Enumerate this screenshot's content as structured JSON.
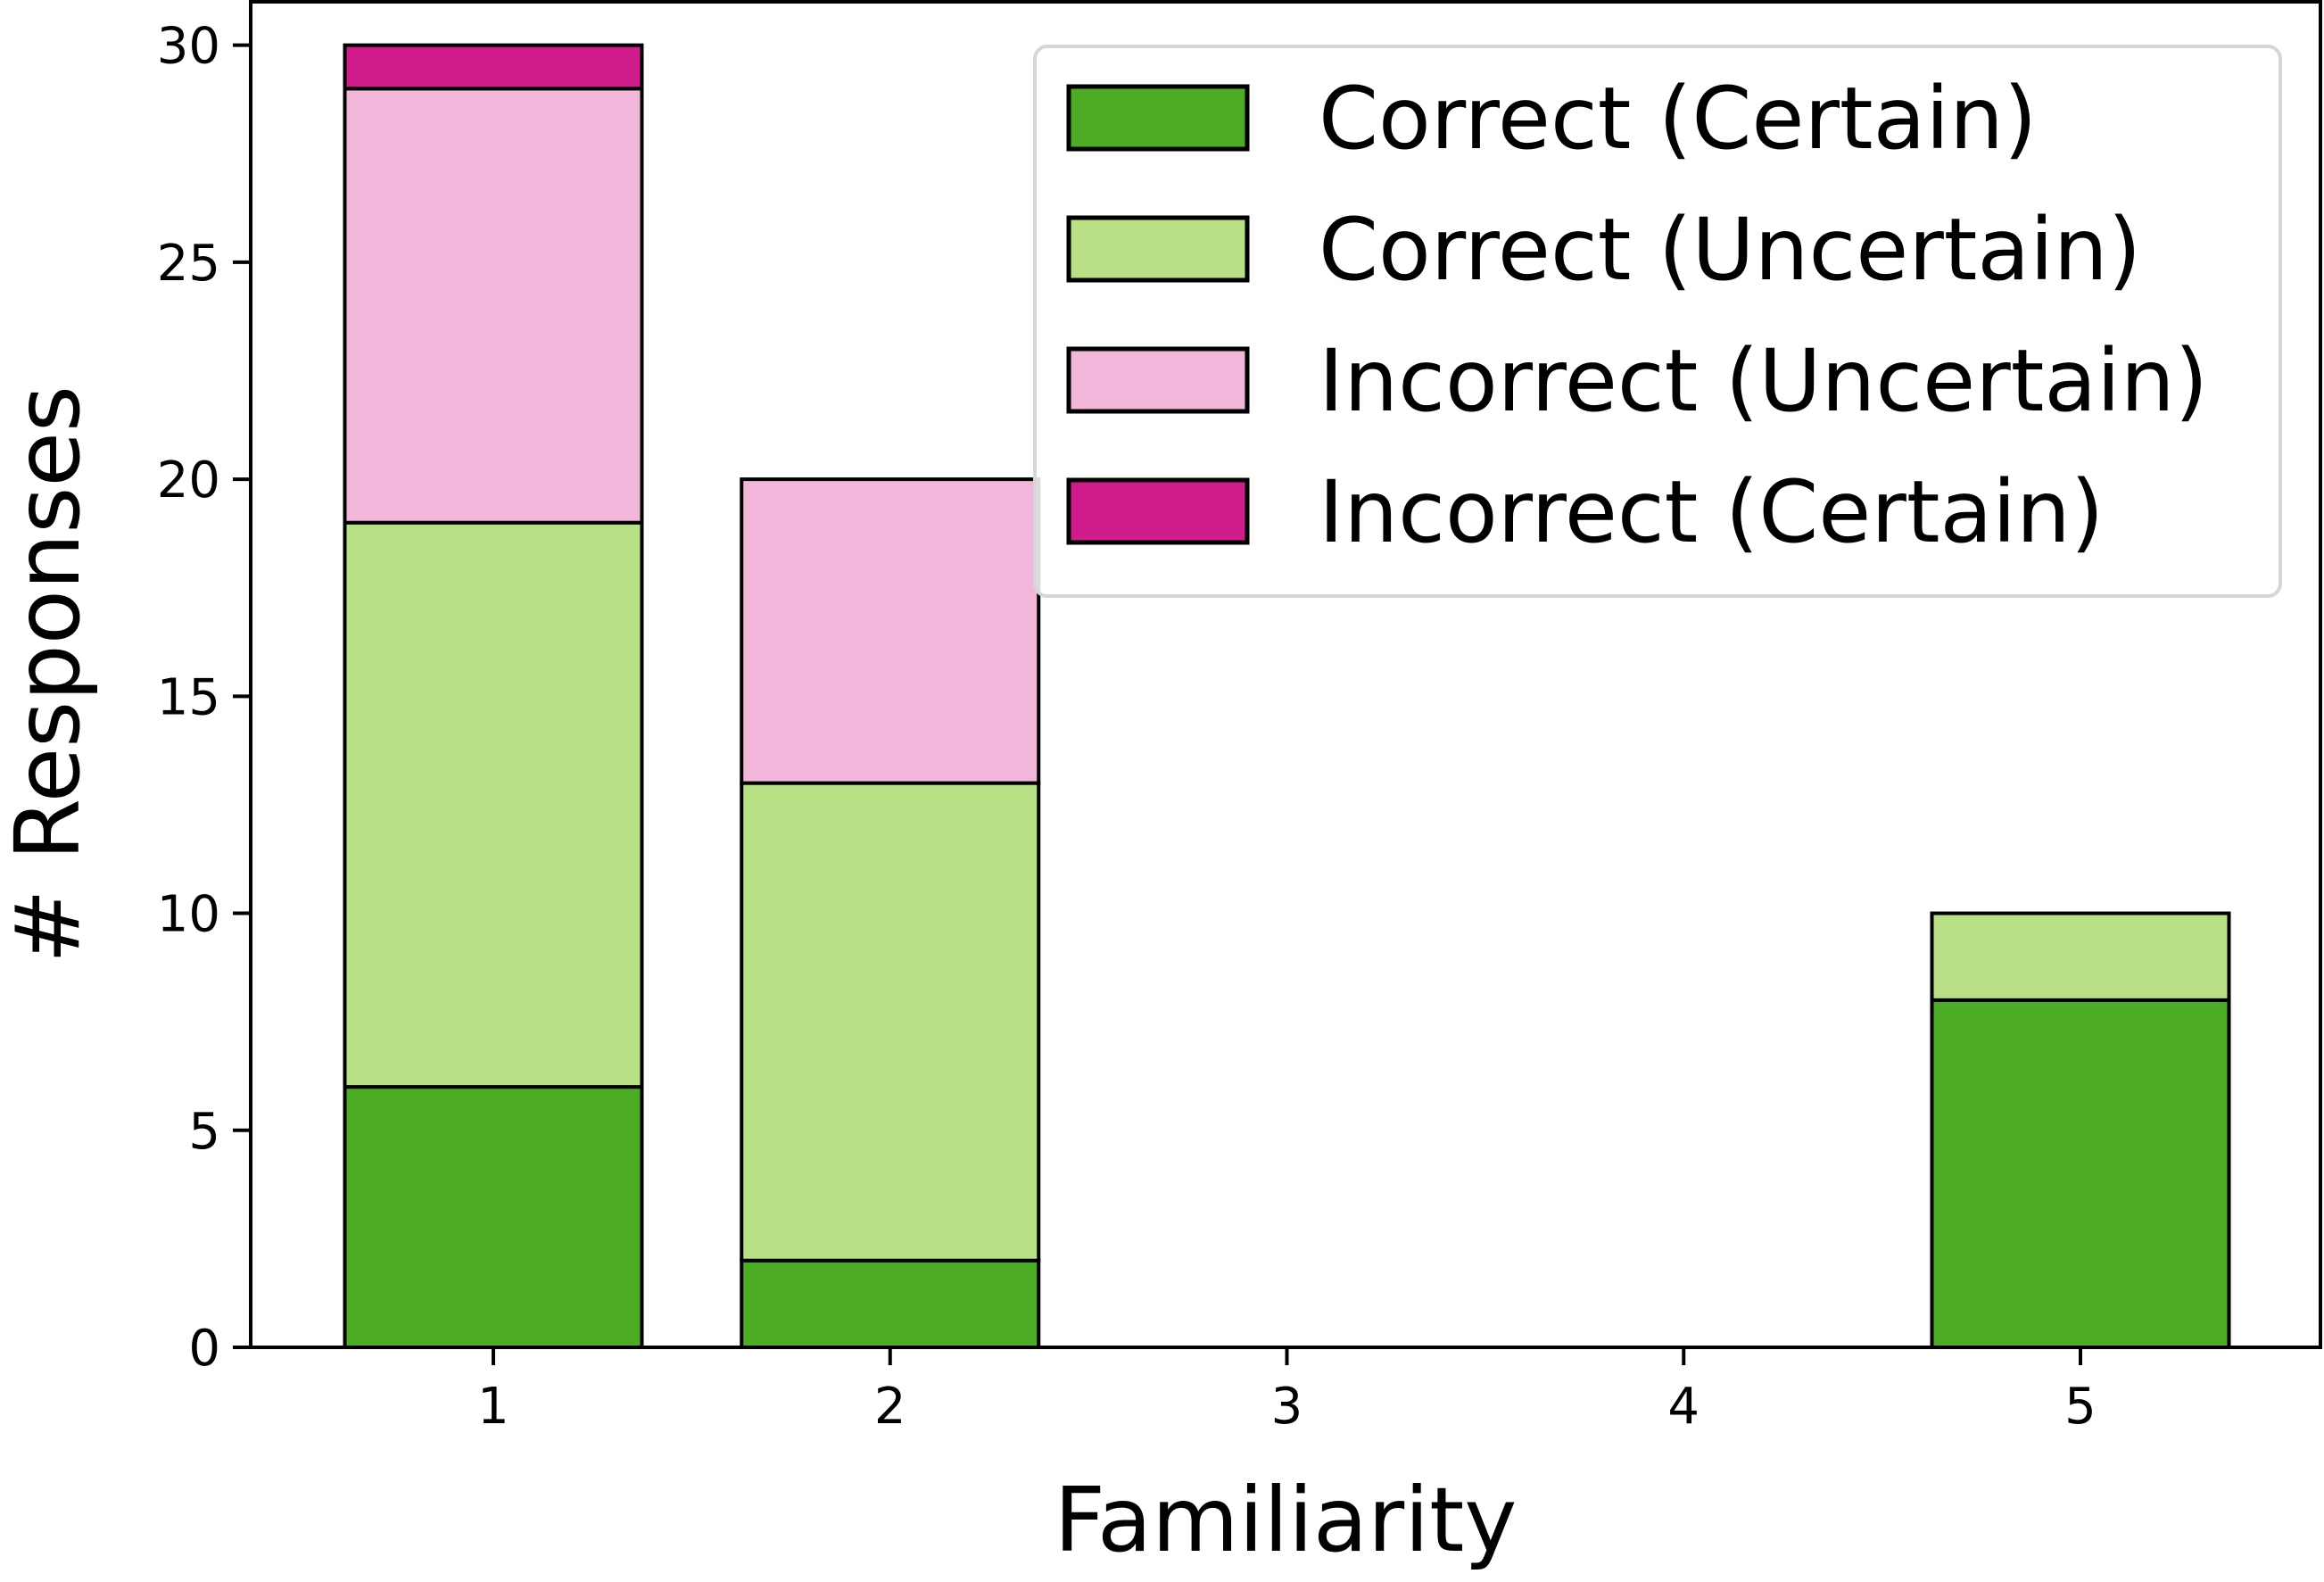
{
  "chart_data": {
    "type": "bar",
    "stacked": true,
    "categories": [
      "1",
      "2",
      "3",
      "4",
      "5"
    ],
    "series": [
      {
        "name": "Correct (Certain)",
        "color": "#4dac26",
        "values": [
          6,
          2,
          0,
          0,
          8
        ]
      },
      {
        "name": "Correct (Uncertain)",
        "color": "#b8e186",
        "values": [
          13,
          11,
          0,
          0,
          2
        ]
      },
      {
        "name": "Incorrect (Uncertain)",
        "color": "#f1b6da",
        "values": [
          10,
          7,
          0,
          0,
          0
        ]
      },
      {
        "name": "Incorrect (Certain)",
        "color": "#d01c8b",
        "values": [
          1,
          0,
          0,
          0,
          0
        ]
      }
    ],
    "xlabel": "Familiarity",
    "ylabel": "# Responses",
    "ylim": [
      0,
      31
    ],
    "yticks": [
      0,
      5,
      10,
      15,
      20,
      25,
      30
    ],
    "grid": false,
    "legend_position": "top-right",
    "edge_color": "#000000"
  }
}
